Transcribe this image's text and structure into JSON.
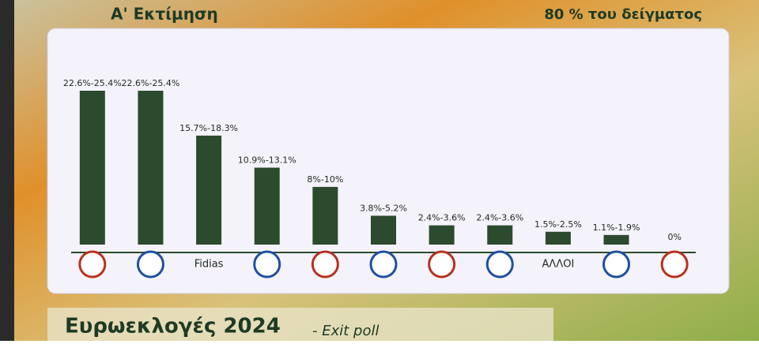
{
  "header": {
    "title": "Α' Εκτίμηση",
    "sample": "80 % του δείγματος"
  },
  "footer": {
    "title": "Ευρωεκλογές 2024",
    "subtitle": "- Exit poll"
  },
  "chart_data": {
    "type": "bar",
    "categories": [
      null,
      null,
      "Fidias",
      null,
      null,
      null,
      null,
      null,
      "ΑΛΛΟΙ",
      null,
      null
    ],
    "values": [
      24,
      24,
      17,
      12,
      9,
      4.5,
      3,
      3,
      2,
      1.5,
      0
    ],
    "value_labels": [
      "22.6%-25.4%",
      "22.6%-25.4%",
      "15.7%-18.3%",
      "10.9%-13.1%",
      "8%-10%",
      "3.8%-5.2%",
      "2.4%-3.6%",
      "2.4%-3.6%",
      "1.5%-2.5%",
      "1.1%-1.9%",
      "0%"
    ],
    "color": "#2c4a2e"
  }
}
